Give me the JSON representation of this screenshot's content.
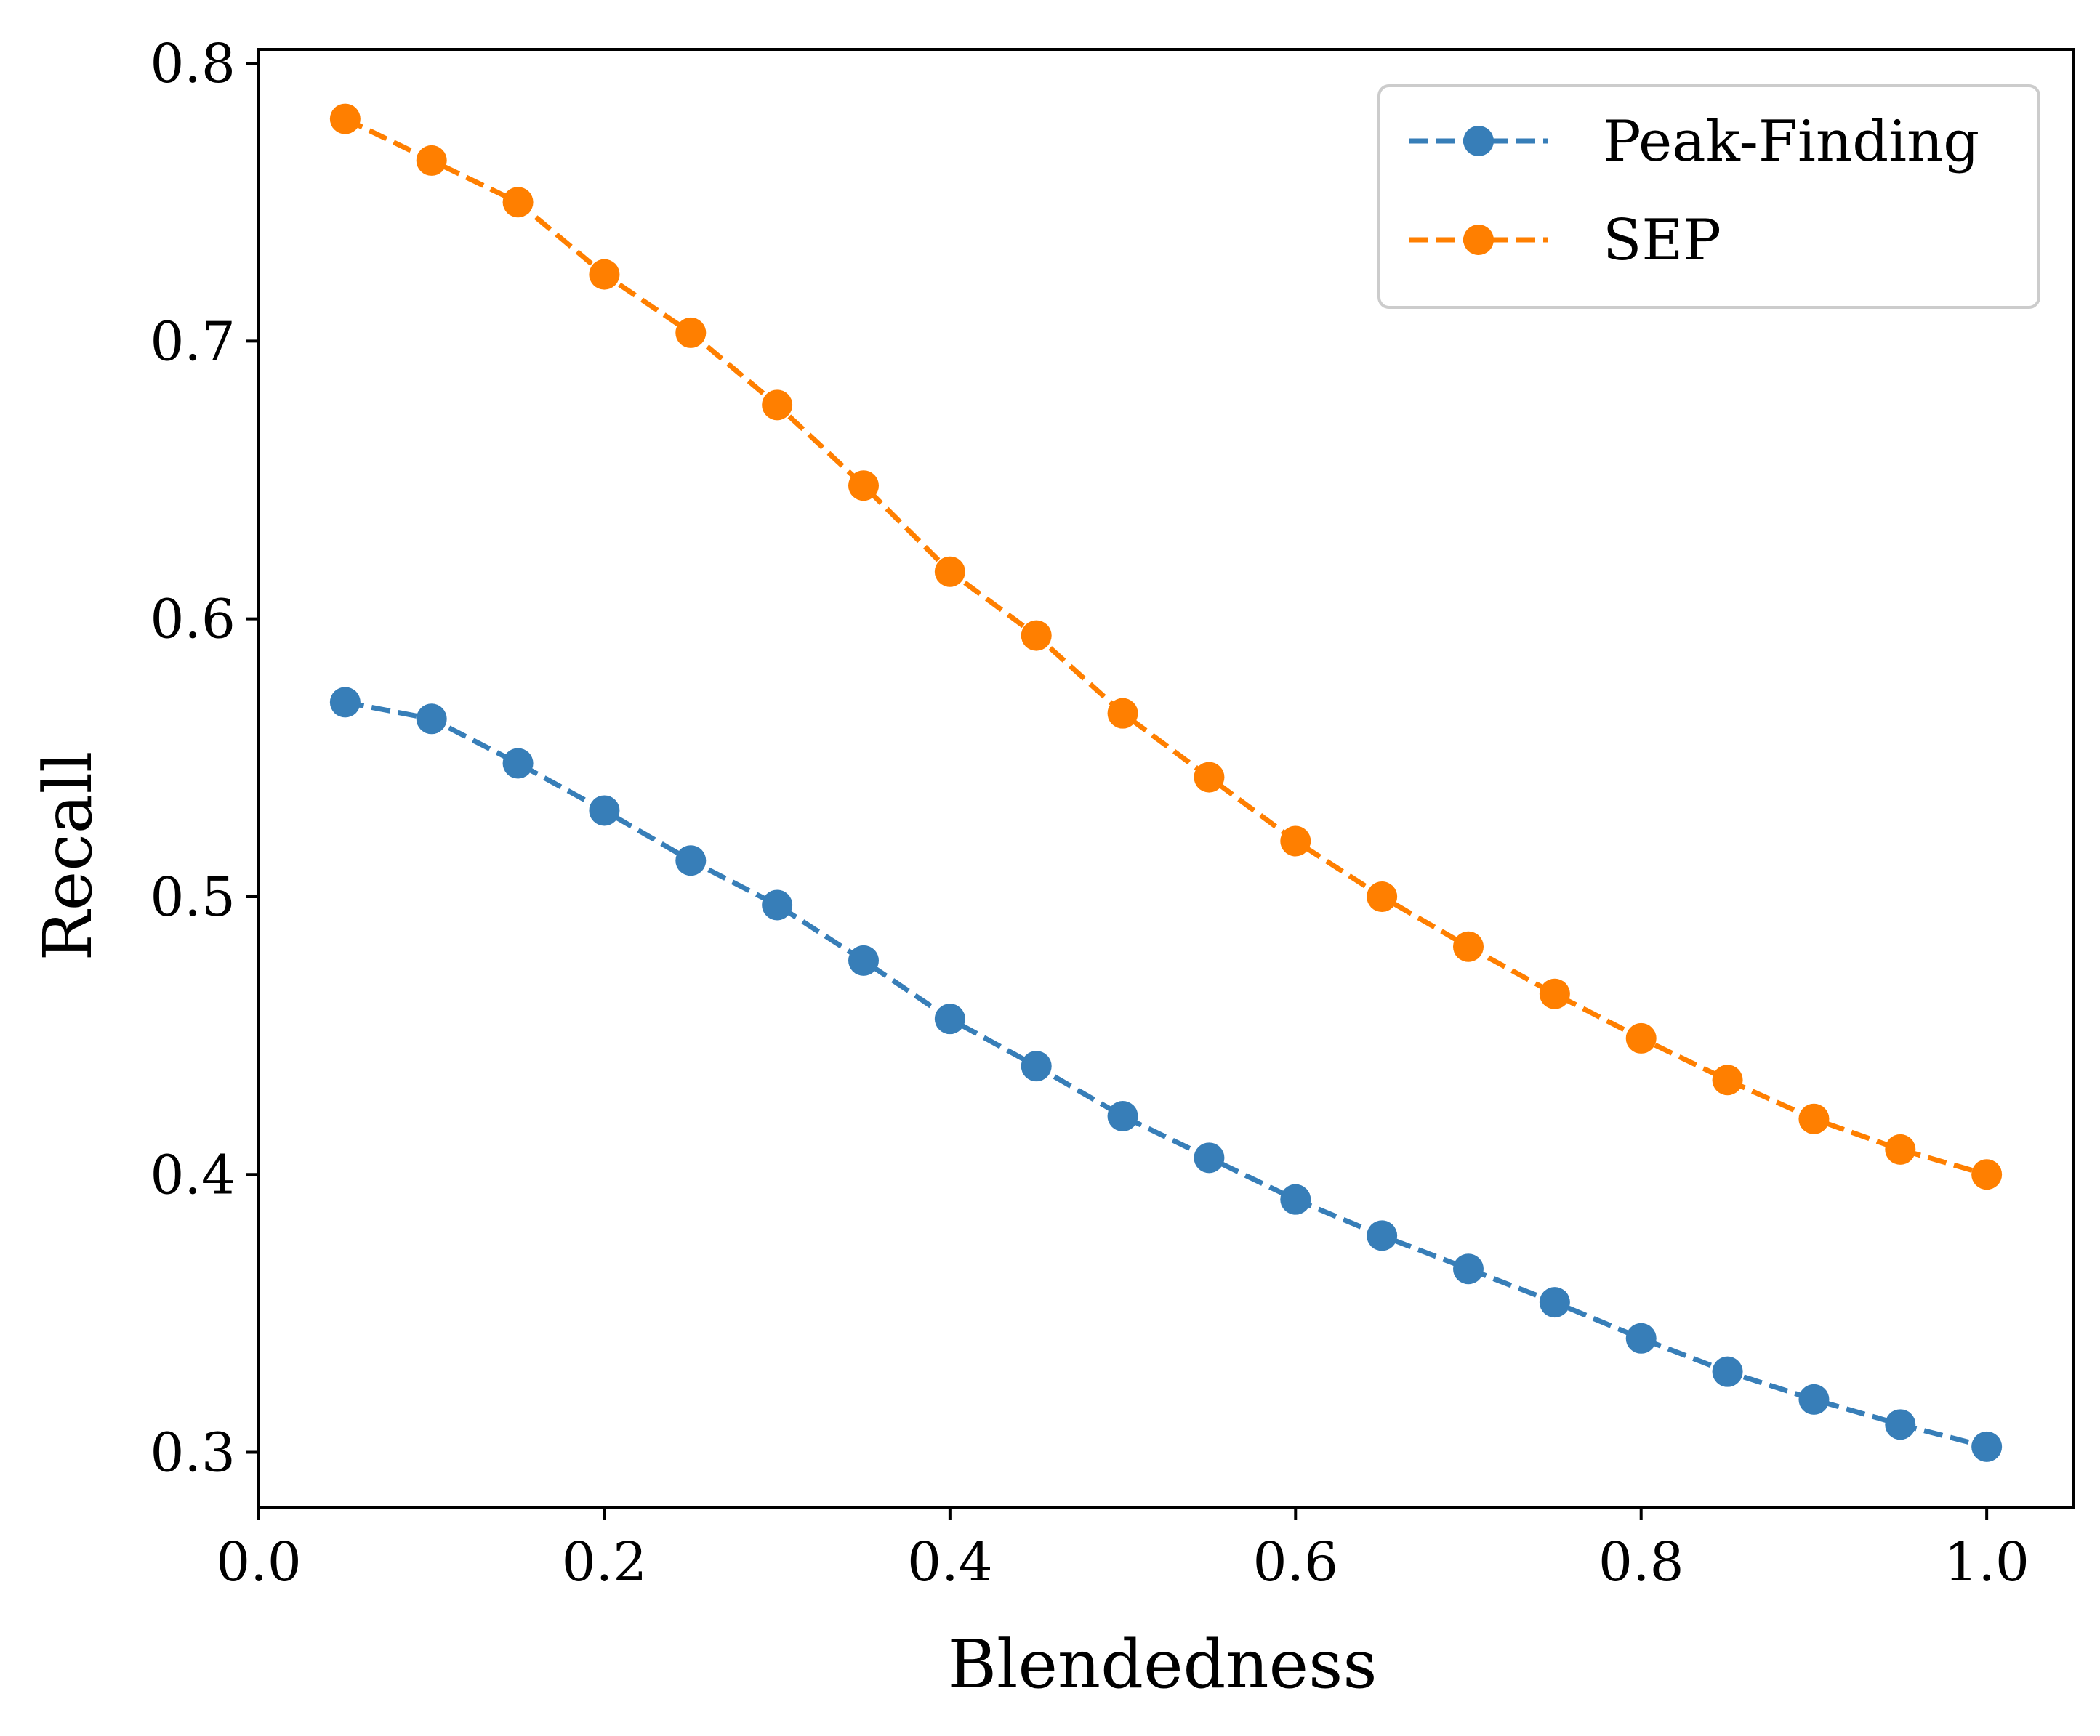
{
  "chart_data": {
    "type": "line",
    "x": [
      0.05,
      0.1,
      0.15,
      0.2,
      0.25,
      0.3,
      0.35,
      0.4,
      0.45,
      0.5,
      0.55,
      0.6,
      0.65,
      0.7,
      0.75,
      0.8,
      0.85,
      0.9,
      0.95,
      1.0
    ],
    "series": [
      {
        "name": "Peak-Finding",
        "color": "#377eb8",
        "values": [
          0.57,
          0.564,
          0.548,
          0.531,
          0.513,
          0.497,
          0.477,
          0.456,
          0.439,
          0.421,
          0.406,
          0.391,
          0.378,
          0.366,
          0.354,
          0.341,
          0.329,
          0.319,
          0.31,
          0.302
        ]
      },
      {
        "name": "SEP",
        "color": "#ff7f00",
        "values": [
          0.78,
          0.765,
          0.75,
          0.724,
          0.703,
          0.677,
          0.648,
          0.617,
          0.594,
          0.566,
          0.543,
          0.52,
          0.5,
          0.482,
          0.465,
          0.449,
          0.434,
          0.42,
          0.409,
          0.4
        ]
      }
    ],
    "title": "",
    "xlabel": "Blendedness",
    "ylabel": "Recall",
    "xlim": [
      0.0,
      1.05
    ],
    "ylim": [
      0.28,
      0.805
    ],
    "xticks": [
      0.0,
      0.2,
      0.4,
      0.6,
      0.8,
      1.0
    ],
    "xtick_labels": [
      "0.0",
      "0.2",
      "0.4",
      "0.6",
      "0.8",
      "1.0"
    ],
    "yticks": [
      0.3,
      0.4,
      0.5,
      0.6,
      0.7,
      0.8
    ],
    "ytick_labels": [
      "0.3",
      "0.4",
      "0.5",
      "0.6",
      "0.7",
      "0.8"
    ],
    "grid": false,
    "legend": "top-right",
    "line_style": "dashed",
    "marker": "circle"
  }
}
